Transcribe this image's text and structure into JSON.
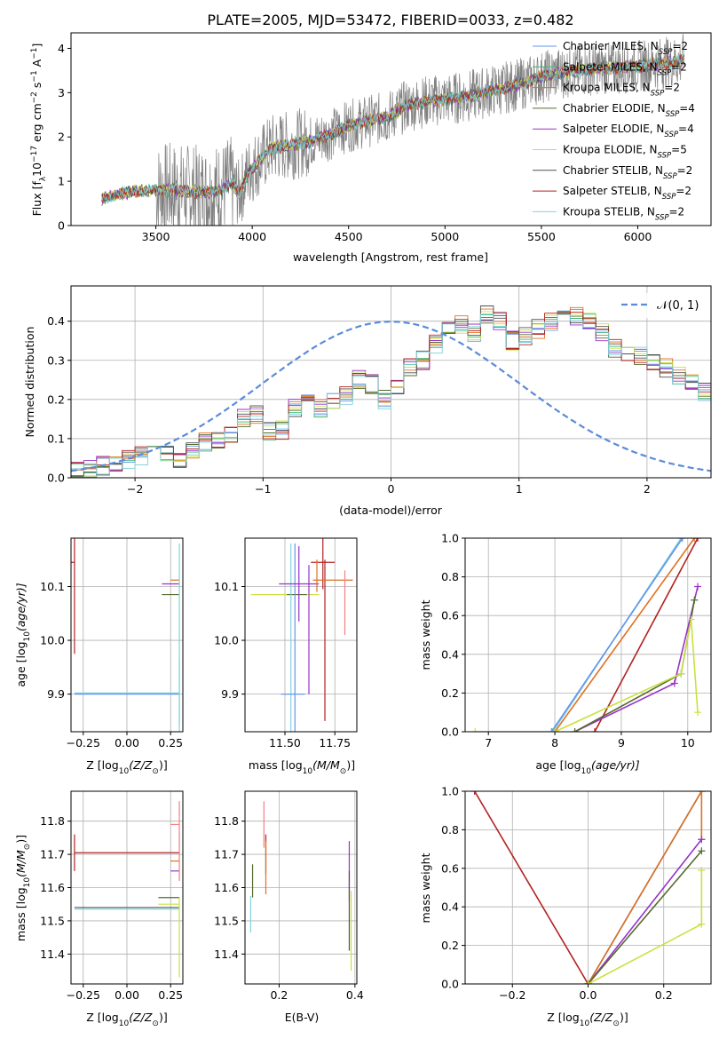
{
  "figure_title": "PLATE=2005, MJD=53472, FIBERID=0033, z=0.482",
  "colors": {
    "chabrier_miles": "#6495ED",
    "salpeter_miles": "#3CB371",
    "kroupa_miles": "#E07020",
    "chabrier_elodie": "#556B2F",
    "salpeter_elodie": "#9932CC",
    "kroupa_elodie": "#CCE040",
    "chabrier_stelib": "#505050",
    "salpeter_stelib": "#B22222",
    "kroupa_stelib": "#7FD4DC",
    "pink": "#F08080",
    "data_grey": "#808080",
    "normal_curve": "#5B8BD9",
    "grid": "#b0b0b0"
  },
  "legend_entries": [
    {
      "name": "Chabrier MILES",
      "nssp": "2",
      "color": "#6495ED"
    },
    {
      "name": "Salpeter MILES",
      "nssp": "2",
      "color": "#3CB371"
    },
    {
      "name": "Kroupa MILES",
      "nssp": "2",
      "color": "#E07020"
    },
    {
      "name": "Chabrier ELODIE",
      "nssp": "4",
      "color": "#556B2F"
    },
    {
      "name": "Salpeter ELODIE",
      "nssp": "4",
      "color": "#9932CC"
    },
    {
      "name": "Kroupa ELODIE",
      "nssp": "5",
      "color": "#CCE040"
    },
    {
      "name": "Chabrier STELIB",
      "nssp": "2",
      "color": "#505050"
    },
    {
      "name": "Salpeter STELIB",
      "nssp": "2",
      "color": "#B22222"
    },
    {
      "name": "Kroupa STELIB",
      "nssp": "2",
      "color": "#7FD4DC"
    }
  ],
  "legend_nssp_prefix": "N",
  "legend_nssp_sub": "SSP",
  "legend_nssp_eq": "=",
  "chart_data": [
    {
      "id": "spectrum",
      "type": "line",
      "xlabel": "wavelength [Angstrom, rest frame]",
      "ylabel_html": "Flux [f",
      "ylabel_parts": [
        "Flux [f",
        "λ",
        "10",
        "−17",
        " erg cm",
        "−2",
        " s",
        "−1",
        " A",
        "−1",
        "]"
      ],
      "xlim": [
        3060,
        6380
      ],
      "ylim": [
        0,
        4.35
      ],
      "xticks": [
        3500,
        4000,
        4500,
        5000,
        5500,
        6000
      ],
      "yticks": [
        0,
        1,
        2,
        3,
        4
      ],
      "model_x": [
        3220,
        3300,
        3400,
        3500,
        3600,
        3700,
        3800,
        3900,
        3930,
        3980,
        4100,
        4200,
        4300,
        4400,
        4500,
        4600,
        4700,
        4800,
        4900,
        5000,
        5100,
        5200,
        5300,
        5400,
        5500,
        5600,
        5700,
        5800,
        5900,
        6000,
        6100,
        6200,
        6240
      ],
      "model_y": [
        0.6,
        0.7,
        0.78,
        0.8,
        0.8,
        0.75,
        0.75,
        0.95,
        0.7,
        1.2,
        1.75,
        1.82,
        1.9,
        2.05,
        2.25,
        2.35,
        2.45,
        2.7,
        2.8,
        2.85,
        2.9,
        3.0,
        3.1,
        3.2,
        3.35,
        3.45,
        3.5,
        3.55,
        3.55,
        3.6,
        3.65,
        3.7,
        3.75
      ]
    },
    {
      "id": "residual_hist",
      "type": "histogram",
      "xlabel": "(data-model)/error",
      "ylabel": "Normed distribution",
      "xlim": [
        -2.5,
        2.5
      ],
      "ylim": [
        0,
        0.49
      ],
      "xticks": [
        -2,
        -1,
        0,
        1,
        2
      ],
      "yticks": [
        0.0,
        0.1,
        0.2,
        0.3,
        0.4
      ],
      "legend": "𝒩(0, 1)",
      "bin_edges_start": -2.5,
      "bin_width": 0.1,
      "base_hist": [
        0.015,
        0.02,
        0.03,
        0.04,
        0.045,
        0.055,
        0.065,
        0.06,
        0.05,
        0.07,
        0.09,
        0.1,
        0.11,
        0.15,
        0.16,
        0.12,
        0.12,
        0.18,
        0.19,
        0.18,
        0.2,
        0.21,
        0.25,
        0.24,
        0.2,
        0.23,
        0.28,
        0.3,
        0.34,
        0.38,
        0.39,
        0.37,
        0.42,
        0.4,
        0.35,
        0.36,
        0.38,
        0.4,
        0.42,
        0.41,
        0.4,
        0.37,
        0.33,
        0.32,
        0.31,
        0.29,
        0.28,
        0.26,
        0.25,
        0.22,
        0.2,
        0.2,
        0.18,
        0.17,
        0.15,
        0.13,
        0.11,
        0.1,
        0.09,
        0.08,
        0.08,
        0.07,
        0.07,
        0.06,
        0.05,
        0.05,
        0.04,
        0.04,
        0.035,
        0.03,
        0.03
      ]
    },
    {
      "id": "age_vs_Z",
      "type": "errorbar",
      "xlabel_parts": [
        "Z [log",
        "10",
        "(Z/Z",
        "⊙",
        ")]"
      ],
      "ylabel_parts": [
        "age  [log",
        "10",
        "(age/yr)]"
      ],
      "xlim": [
        -0.32,
        0.32
      ],
      "ylim": [
        9.83,
        10.19
      ],
      "xticks": [
        -0.25,
        0.0,
        0.25
      ],
      "yticks": [
        9.9,
        10.0,
        10.1
      ],
      "points": [
        {
          "x": -0.3,
          "xerr": [
            0.6,
            0.0
          ],
          "y": 10.145,
          "yerr": 0.17,
          "color": "#B22222"
        },
        {
          "x": 0.3,
          "xerr": [
            0.6,
            0.0
          ],
          "y": 9.902,
          "yerr": 0.06,
          "color": "#7FD4DC"
        },
        {
          "x": 0.3,
          "xerr": [
            0.6,
            0.0
          ],
          "y": 9.9,
          "yerr": 0.0,
          "color": "#6495ED"
        },
        {
          "x": 0.3,
          "xerr": [
            0.05,
            0.0
          ],
          "y": 10.112,
          "yerr": 0.0,
          "color": "#E07020"
        },
        {
          "x": 0.3,
          "xerr": [
            0.1,
            0.0
          ],
          "y": 10.105,
          "yerr": 0.0,
          "color": "#9932CC"
        },
        {
          "x": 0.3,
          "xerr": [
            0.1,
            0.0
          ],
          "y": 10.085,
          "yerr": 0.0,
          "color": "#556B2F"
        },
        {
          "x": 0.3,
          "xerr": [
            0.0,
            0.0
          ],
          "y": 10.0,
          "yerr": 0.18,
          "color": "#7FD4DC"
        }
      ]
    },
    {
      "id": "age_vs_mass",
      "type": "errorbar",
      "xlabel_parts": [
        "mass [log",
        "10",
        "(M/M",
        "⊙",
        ")]"
      ],
      "xlim": [
        11.3,
        11.86
      ],
      "ylim": [
        9.83,
        10.19
      ],
      "xticks": [
        11.5,
        11.75
      ],
      "yticks": [
        9.9,
        10.0,
        10.1
      ],
      "points": [
        {
          "x": 11.5,
          "xerr": 0.17,
          "y": 10.085,
          "yerr": 0.0,
          "color": "#CCE040"
        },
        {
          "x": 11.56,
          "xerr": 0.05,
          "y": 10.085,
          "yerr": 0.0,
          "color": "#556B2F"
        },
        {
          "x": 11.53,
          "xerr": 0.0,
          "y": 10.0,
          "yerr": 0.18,
          "color": "#7FD4DC"
        },
        {
          "x": 11.55,
          "xerr": 0.0,
          "y": 10.0,
          "yerr": 0.18,
          "color": "#6495ED"
        },
        {
          "x": 11.57,
          "xerr": 0.1,
          "y": 10.105,
          "yerr": 0.07,
          "color": "#9932CC"
        },
        {
          "x": 11.54,
          "xerr": 0.06,
          "y": 9.9,
          "yerr": 0.0,
          "color": "#6495ED"
        },
        {
          "x": 11.69,
          "xerr": 0.06,
          "y": 10.145,
          "yerr": 0.05,
          "color": "#B22222"
        },
        {
          "x": 11.7,
          "xerr": 0.0,
          "y": 10.0,
          "yerr": 0.15,
          "color": "#B22222"
        },
        {
          "x": 11.66,
          "xerr": 0.0,
          "y": 10.12,
          "yerr": 0.03,
          "color": "#E07020"
        },
        {
          "x": 11.74,
          "xerr": 0.1,
          "y": 10.112,
          "yerr": 0.0,
          "color": "#E07020"
        },
        {
          "x": 11.8,
          "xerr": 0.0,
          "y": 10.07,
          "yerr": 0.06,
          "color": "#F08080"
        },
        {
          "x": 11.62,
          "xerr": 0.0,
          "y": 10.02,
          "yerr": 0.12,
          "color": "#9932CC"
        }
      ]
    },
    {
      "id": "massweight_vs_age",
      "type": "line",
      "xlabel_parts": [
        "age  [log",
        "10",
        "(age/yr)]"
      ],
      "ylabel": "mass weight",
      "xlim": [
        6.65,
        10.35
      ],
      "ylim": [
        0,
        1.0
      ],
      "xticks": [
        7,
        8,
        9,
        10
      ],
      "yticks": [
        0.0,
        0.2,
        0.4,
        0.6,
        0.8,
        1.0
      ],
      "series": [
        {
          "color": "#7FD4DC",
          "x": [
            7.97,
            9.9
          ],
          "y": [
            0.0,
            1.0
          ]
        },
        {
          "color": "#6495ED",
          "x": [
            7.95,
            9.92
          ],
          "y": [
            0.0,
            1.0
          ]
        },
        {
          "color": "#E07020",
          "x": [
            8.0,
            10.1
          ],
          "y": [
            0.0,
            1.0
          ]
        },
        {
          "color": "#B22222",
          "x": [
            8.6,
            10.15
          ],
          "y": [
            0.0,
            1.0
          ]
        },
        {
          "color": "#9932CC",
          "x": [
            8.3,
            9.8,
            10.15
          ],
          "y": [
            0.0,
            0.25,
            0.75
          ]
        },
        {
          "color": "#556B2F",
          "x": [
            8.3,
            9.9,
            10.1
          ],
          "y": [
            0.0,
            0.3,
            0.68
          ]
        },
        {
          "color": "#CCE040",
          "x": [
            6.8,
            8.0,
            9.9,
            10.05,
            10.15
          ],
          "y": [
            0.0,
            0.0,
            0.3,
            0.58,
            0.1
          ]
        }
      ]
    },
    {
      "id": "mass_vs_Z",
      "type": "errorbar",
      "xlabel_parts": [
        "Z [log",
        "10",
        "(Z/Z",
        "⊙",
        ")]"
      ],
      "ylabel_parts": [
        "mass [log",
        "10",
        "(M/M",
        "⊙",
        ")]"
      ],
      "xlim": [
        -0.32,
        0.32
      ],
      "ylim": [
        11.31,
        11.89
      ],
      "xticks": [
        -0.25,
        0.0,
        0.25
      ],
      "yticks": [
        11.4,
        11.5,
        11.6,
        11.7,
        11.8
      ],
      "points": [
        {
          "x": -0.3,
          "xerr": [
            0.0,
            0.6
          ],
          "y": 11.705,
          "yerr": 0.055,
          "color": "#B22222"
        },
        {
          "x": -0.3,
          "xerr": [
            0.0,
            0.6
          ],
          "y": 11.54,
          "yerr": 0.0,
          "color": "#505050"
        },
        {
          "x": -0.3,
          "xerr": [
            0.0,
            0.6
          ],
          "y": 11.535,
          "yerr": 0.0,
          "color": "#7FD4DC"
        },
        {
          "x": 0.18,
          "xerr": [
            0.0,
            0.12
          ],
          "y": 11.57,
          "yerr": 0.0,
          "color": "#556B2F"
        },
        {
          "x": 0.18,
          "xerr": [
            0.0,
            0.12
          ],
          "y": 11.55,
          "yerr": 0.0,
          "color": "#CCE040"
        },
        {
          "x": 0.25,
          "xerr": [
            0.0,
            0.05
          ],
          "y": 11.79,
          "yerr": 0.0,
          "color": "#F08080"
        },
        {
          "x": 0.25,
          "xerr": [
            0.0,
            0.05
          ],
          "y": 11.68,
          "yerr": 0.0,
          "color": "#E07020"
        },
        {
          "x": 0.25,
          "xerr": [
            0.0,
            0.05
          ],
          "y": 11.65,
          "yerr": 0.0,
          "color": "#9932CC"
        },
        {
          "x": 0.3,
          "xerr": [
            0.0,
            0.0
          ],
          "y": 11.45,
          "yerr": 0.12,
          "color": "#CCE040"
        },
        {
          "x": 0.3,
          "xerr": [
            0.0,
            0.0
          ],
          "y": 11.74,
          "yerr": 0.12,
          "color": "#F08080"
        }
      ]
    },
    {
      "id": "mass_vs_ebv",
      "type": "errorbar",
      "xlabel": "E(B-V)",
      "xlim": [
        0.11,
        0.405
      ],
      "ylim": [
        11.31,
        11.89
      ],
      "xticks": [
        0.2,
        0.4
      ],
      "yticks": [
        11.4,
        11.5,
        11.6,
        11.7,
        11.8
      ],
      "points": [
        {
          "x": 0.125,
          "xerr": 0.0,
          "y": 11.52,
          "yerr": 0.055,
          "color": "#7FD4DC"
        },
        {
          "x": 0.13,
          "xerr": 0.0,
          "y": 11.62,
          "yerr": 0.05,
          "color": "#556B2F"
        },
        {
          "x": 0.16,
          "xerr": 0.0,
          "y": 11.79,
          "yerr": 0.07,
          "color": "#F08080"
        },
        {
          "x": 0.165,
          "xerr": 0.0,
          "y": 11.7,
          "yerr": 0.06,
          "color": "#B22222"
        },
        {
          "x": 0.165,
          "xerr": 0.0,
          "y": 11.66,
          "yerr": 0.08,
          "color": "#E07020"
        },
        {
          "x": 0.385,
          "xerr": 0.0,
          "y": 11.65,
          "yerr": 0.09,
          "color": "#9932CC"
        },
        {
          "x": 0.39,
          "xerr": 0.0,
          "y": 11.47,
          "yerr": 0.12,
          "color": "#CCE040"
        },
        {
          "x": 0.385,
          "xerr": 0.0,
          "y": 11.53,
          "yerr": 0.12,
          "color": "#505050"
        }
      ]
    },
    {
      "id": "massweight_vs_Z",
      "type": "line",
      "xlabel_parts": [
        "Z [log",
        "10",
        "(Z/Z",
        "⊙",
        ")]"
      ],
      "ylabel": "mass weight",
      "xlim": [
        -0.325,
        0.325
      ],
      "ylim": [
        0,
        1.0
      ],
      "xticks": [
        -0.2,
        0.0,
        0.2
      ],
      "yticks": [
        0.0,
        0.2,
        0.4,
        0.6,
        0.8,
        1.0
      ],
      "series": [
        {
          "color": "#B22222",
          "x": [
            -0.3,
            0.0
          ],
          "y": [
            1.0,
            0.0
          ]
        },
        {
          "color": "#7FD4DC",
          "x": [
            0.0,
            0.3
          ],
          "y": [
            0.0,
            1.0
          ]
        },
        {
          "color": "#6495ED",
          "x": [
            0.0,
            0.3
          ],
          "y": [
            0.0,
            1.0
          ]
        },
        {
          "color": "#E07020",
          "x": [
            0.0,
            0.3,
            0.3
          ],
          "y": [
            0.0,
            1.0,
            0.75
          ]
        },
        {
          "color": "#9932CC",
          "x": [
            0.0,
            0.3
          ],
          "y": [
            0.0,
            0.75
          ]
        },
        {
          "color": "#556B2F",
          "x": [
            0.0,
            0.3
          ],
          "y": [
            0.0,
            0.69
          ]
        },
        {
          "color": "#CCE040",
          "x": [
            0.0,
            0.3,
            0.3
          ],
          "y": [
            0.0,
            0.31,
            0.59
          ]
        }
      ]
    }
  ]
}
